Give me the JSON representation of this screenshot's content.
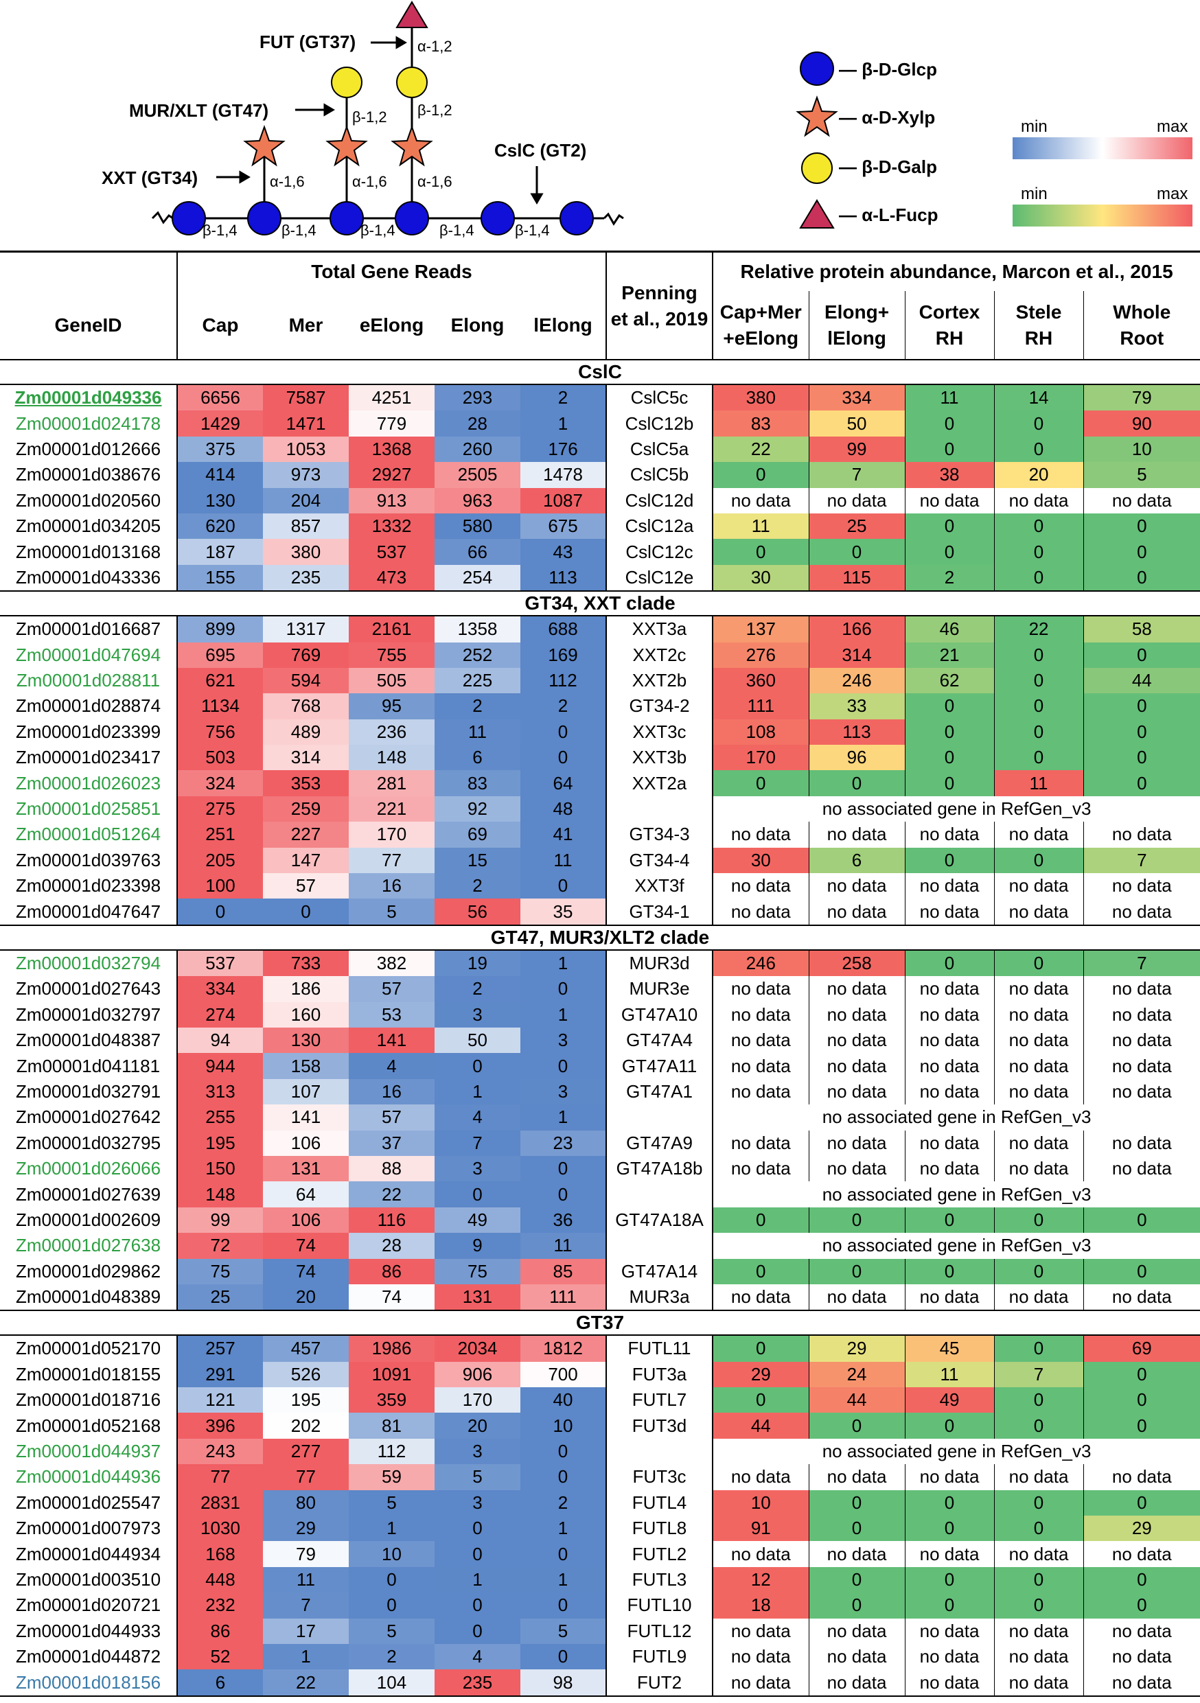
{
  "diagram": {
    "enzymes": {
      "fut": "FUT (GT37)",
      "mur": "MUR/XLT (GT47)",
      "xxt": "XXT (GT34)",
      "cslc": "CslC (GT2)"
    },
    "bonds": {
      "b14": "β-1,4",
      "a16": "α-1,6",
      "b12": "β-1,2",
      "a12": "α-1,2"
    },
    "legend": {
      "glc": "— β-D-Glcp",
      "xyl": "— α-D-Xylp",
      "gal": "— β-D-Galp",
      "fuc": "— α-L-Fucp"
    },
    "scales": {
      "min": "min",
      "max": "max"
    }
  },
  "table": {
    "headers": {
      "geneid": "GeneID",
      "total_reads": "Total Gene Reads",
      "cap": "Cap",
      "mer": "Mer",
      "eelong": "eElong",
      "elong": "Elong",
      "lelong": "lElong",
      "penning1": "Penning",
      "penning2": "et al., 2019",
      "protein": "Relative protein abundance, Marcon et al., 2015",
      "p1a": "Cap+Mer",
      "p1b": "+eElong",
      "p2a": "Elong+",
      "p2b": "lElong",
      "p3a": "Cortex",
      "p3b": "RH",
      "p4a": "Stele",
      "p4b": "RH",
      "p5a": "Whole",
      "p5b": "Root"
    },
    "no_data": "no data",
    "no_assoc": "no associated gene in RefGen_v3",
    "groups": [
      {
        "name": "CslC",
        "rows": [
          {
            "id": "Zm00001d049336",
            "style": "green-hl",
            "reads": [
              6656,
              7587,
              4251,
              293,
              2
            ],
            "penning": "CslC5c",
            "prot": [
              380,
              334,
              11,
              14,
              79
            ]
          },
          {
            "id": "Zm00001d024178",
            "style": "green",
            "reads": [
              1429,
              1471,
              779,
              28,
              1
            ],
            "penning": "CslC12b",
            "prot": [
              83,
              50,
              0,
              0,
              90
            ]
          },
          {
            "id": "Zm00001d012666",
            "style": "",
            "reads": [
              375,
              1053,
              1368,
              260,
              176
            ],
            "penning": "CslC5a",
            "prot": [
              22,
              99,
              0,
              0,
              10
            ]
          },
          {
            "id": "Zm00001d038676",
            "style": "",
            "reads": [
              414,
              973,
              2927,
              2505,
              1478
            ],
            "penning": "CslC5b",
            "prot": [
              0,
              7,
              38,
              20,
              5
            ]
          },
          {
            "id": "Zm00001d020560",
            "style": "",
            "reads": [
              130,
              204,
              913,
              963,
              1087
            ],
            "penning": "CslC12d",
            "prot": [
              null,
              null,
              null,
              null,
              null
            ]
          },
          {
            "id": "Zm00001d034205",
            "style": "",
            "reads": [
              620,
              857,
              1332,
              580,
              675
            ],
            "penning": "CslC12a",
            "prot": [
              11,
              25,
              0,
              0,
              0
            ]
          },
          {
            "id": "Zm00001d013168",
            "style": "",
            "reads": [
              187,
              380,
              537,
              66,
              43
            ],
            "penning": "CslC12c",
            "prot": [
              0,
              0,
              0,
              0,
              0
            ]
          },
          {
            "id": "Zm00001d043336",
            "style": "",
            "reads": [
              155,
              235,
              473,
              254,
              113
            ],
            "penning": "CslC12e",
            "prot": [
              30,
              115,
              2,
              0,
              0
            ]
          }
        ]
      },
      {
        "name": "GT34, XXT clade",
        "rows": [
          {
            "id": "Zm00001d016687",
            "style": "",
            "reads": [
              899,
              1317,
              2161,
              1358,
              688
            ],
            "penning": "XXT3a",
            "prot": [
              137,
              166,
              46,
              22,
              58
            ]
          },
          {
            "id": "Zm00001d047694",
            "style": "green",
            "reads": [
              695,
              769,
              755,
              252,
              169
            ],
            "penning": "XXT2c",
            "prot": [
              276,
              314,
              21,
              0,
              0
            ]
          },
          {
            "id": "Zm00001d028811",
            "style": "green",
            "reads": [
              621,
              594,
              505,
              225,
              112
            ],
            "penning": "XXT2b",
            "prot": [
              360,
              246,
              62,
              0,
              44
            ]
          },
          {
            "id": "Zm00001d028874",
            "style": "",
            "reads": [
              1134,
              768,
              95,
              2,
              2
            ],
            "penning": "GT34-2",
            "prot": [
              111,
              33,
              0,
              0,
              0
            ]
          },
          {
            "id": "Zm00001d023399",
            "style": "",
            "reads": [
              756,
              489,
              236,
              11,
              0
            ],
            "penning": "XXT3c",
            "prot": [
              108,
              113,
              0,
              0,
              0
            ]
          },
          {
            "id": "Zm00001d023417",
            "style": "",
            "reads": [
              503,
              314,
              148,
              6,
              0
            ],
            "penning": "XXT3b",
            "prot": [
              170,
              96,
              0,
              0,
              0
            ]
          },
          {
            "id": "Zm00001d026023",
            "style": "green",
            "reads": [
              324,
              353,
              281,
              83,
              64
            ],
            "penning": "XXT2a",
            "prot": [
              0,
              0,
              0,
              11,
              0
            ]
          },
          {
            "id": "Zm00001d025851",
            "style": "green",
            "reads": [
              275,
              259,
              221,
              92,
              48
            ],
            "penning": "",
            "prot": "noassoc"
          },
          {
            "id": "Zm00001d051264",
            "style": "green",
            "reads": [
              251,
              227,
              170,
              69,
              41
            ],
            "penning": "GT34-3",
            "prot": [
              null,
              null,
              null,
              null,
              null
            ]
          },
          {
            "id": "Zm00001d039763",
            "style": "",
            "reads": [
              205,
              147,
              77,
              15,
              11
            ],
            "penning": "GT34-4",
            "prot": [
              30,
              6,
              0,
              0,
              7
            ]
          },
          {
            "id": "Zm00001d023398",
            "style": "",
            "reads": [
              100,
              57,
              16,
              2,
              0
            ],
            "penning": "XXT3f",
            "prot": [
              null,
              null,
              null,
              null,
              null
            ]
          },
          {
            "id": "Zm00001d047647",
            "style": "",
            "reads": [
              0,
              0,
              5,
              56,
              35
            ],
            "penning": "GT34-1",
            "prot": [
              null,
              null,
              null,
              null,
              null
            ]
          }
        ]
      },
      {
        "name": "GT47, MUR3/XLT2 clade",
        "rows": [
          {
            "id": "Zm00001d032794",
            "style": "green",
            "reads": [
              537,
              733,
              382,
              19,
              1
            ],
            "penning": "MUR3d",
            "prot": [
              246,
              258,
              0,
              0,
              7
            ]
          },
          {
            "id": "Zm00001d027643",
            "style": "",
            "reads": [
              334,
              186,
              57,
              2,
              0
            ],
            "penning": "MUR3e",
            "prot": [
              null,
              null,
              null,
              null,
              null
            ]
          },
          {
            "id": "Zm00001d032797",
            "style": "",
            "reads": [
              274,
              160,
              53,
              3,
              1
            ],
            "penning": "GT47A10",
            "prot": [
              null,
              null,
              null,
              null,
              null
            ]
          },
          {
            "id": "Zm00001d048387",
            "style": "",
            "reads": [
              94,
              130,
              141,
              50,
              3
            ],
            "penning": "GT47A4",
            "prot": [
              null,
              null,
              null,
              null,
              null
            ]
          },
          {
            "id": "Zm00001d041181",
            "style": "",
            "reads": [
              944,
              158,
              4,
              0,
              0
            ],
            "penning": "GT47A11",
            "prot": [
              null,
              null,
              null,
              null,
              null
            ]
          },
          {
            "id": "Zm00001d032791",
            "style": "",
            "reads": [
              313,
              107,
              16,
              1,
              3
            ],
            "penning": "GT47A1",
            "prot": [
              null,
              null,
              null,
              null,
              null
            ]
          },
          {
            "id": "Zm00001d027642",
            "style": "",
            "reads": [
              255,
              141,
              57,
              4,
              1
            ],
            "penning": "",
            "prot": "noassoc"
          },
          {
            "id": "Zm00001d032795",
            "style": "",
            "reads": [
              195,
              106,
              37,
              7,
              23
            ],
            "penning": "GT47A9",
            "prot": [
              null,
              null,
              null,
              null,
              null
            ]
          },
          {
            "id": "Zm00001d026066",
            "style": "green",
            "reads": [
              150,
              131,
              88,
              3,
              0
            ],
            "penning": "GT47A18b",
            "prot": [
              null,
              null,
              null,
              null,
              null
            ]
          },
          {
            "id": "Zm00001d027639",
            "style": "",
            "reads": [
              148,
              64,
              22,
              0,
              0
            ],
            "penning": "",
            "prot": "noassoc"
          },
          {
            "id": "Zm00001d002609",
            "style": "",
            "reads": [
              99,
              106,
              116,
              49,
              36
            ],
            "penning": "GT47A18A",
            "prot": [
              0,
              0,
              0,
              0,
              0
            ]
          },
          {
            "id": "Zm00001d027638",
            "style": "green",
            "reads": [
              72,
              74,
              28,
              9,
              11
            ],
            "penning": "",
            "prot": "noassoc"
          },
          {
            "id": "Zm00001d029862",
            "style": "",
            "reads": [
              75,
              74,
              86,
              75,
              85
            ],
            "penning": "GT47A14",
            "prot": [
              0,
              0,
              0,
              0,
              0
            ]
          },
          {
            "id": "Zm00001d048389",
            "style": "",
            "reads": [
              25,
              20,
              74,
              131,
              111
            ],
            "penning": "MUR3a",
            "prot": [
              null,
              null,
              null,
              null,
              null
            ]
          }
        ]
      },
      {
        "name": "GT37",
        "rows": [
          {
            "id": "Zm00001d052170",
            "style": "",
            "reads": [
              257,
              457,
              1986,
              2034,
              1812
            ],
            "penning": "FUTL11",
            "prot": [
              0,
              29,
              45,
              0,
              69
            ]
          },
          {
            "id": "Zm00001d018155",
            "style": "",
            "reads": [
              291,
              526,
              1091,
              906,
              700
            ],
            "penning": "FUT3a",
            "prot": [
              29,
              24,
              11,
              7,
              0
            ]
          },
          {
            "id": "Zm00001d018716",
            "style": "",
            "reads": [
              121,
              195,
              359,
              170,
              40
            ],
            "penning": "FUTL7",
            "prot": [
              0,
              44,
              49,
              0,
              0
            ]
          },
          {
            "id": "Zm00001d052168",
            "style": "",
            "reads": [
              396,
              202,
              81,
              20,
              10
            ],
            "penning": "FUT3d",
            "prot": [
              44,
              0,
              0,
              0,
              0
            ]
          },
          {
            "id": "Zm00001d044937",
            "style": "green",
            "reads": [
              243,
              277,
              112,
              3,
              0
            ],
            "penning": "",
            "prot": "noassoc"
          },
          {
            "id": "Zm00001d044936",
            "style": "green",
            "reads": [
              77,
              77,
              59,
              5,
              0
            ],
            "penning": "FUT3c",
            "prot": [
              null,
              null,
              null,
              null,
              null
            ]
          },
          {
            "id": "Zm00001d025547",
            "style": "",
            "reads": [
              2831,
              80,
              5,
              3,
              2
            ],
            "penning": "FUTL4",
            "prot": [
              10,
              0,
              0,
              0,
              0
            ]
          },
          {
            "id": "Zm00001d007973",
            "style": "",
            "reads": [
              1030,
              29,
              1,
              0,
              1
            ],
            "penning": "FUTL8",
            "prot": [
              91,
              0,
              0,
              0,
              29
            ]
          },
          {
            "id": "Zm00001d044934",
            "style": "",
            "reads": [
              168,
              79,
              10,
              0,
              0
            ],
            "penning": "FUTL2",
            "prot": [
              null,
              null,
              null,
              null,
              null
            ]
          },
          {
            "id": "Zm00001d003510",
            "style": "",
            "reads": [
              448,
              11,
              0,
              1,
              1
            ],
            "penning": "FUTL3",
            "prot": [
              12,
              0,
              0,
              0,
              0
            ]
          },
          {
            "id": "Zm00001d020721",
            "style": "",
            "reads": [
              232,
              7,
              0,
              0,
              0
            ],
            "penning": "FUTL10",
            "prot": [
              18,
              0,
              0,
              0,
              0
            ]
          },
          {
            "id": "Zm00001d044933",
            "style": "",
            "reads": [
              86,
              17,
              5,
              0,
              5
            ],
            "penning": "FUTL12",
            "prot": [
              null,
              null,
              null,
              null,
              null
            ]
          },
          {
            "id": "Zm00001d044872",
            "style": "",
            "reads": [
              52,
              1,
              2,
              4,
              0
            ],
            "penning": "FUTL9",
            "prot": [
              null,
              null,
              null,
              null,
              null
            ]
          },
          {
            "id": "Zm00001d018156",
            "style": "teal",
            "reads": [
              6,
              22,
              104,
              235,
              98
            ],
            "penning": "FUT2",
            "prot": [
              null,
              null,
              null,
              null,
              null
            ]
          }
        ]
      }
    ]
  }
}
